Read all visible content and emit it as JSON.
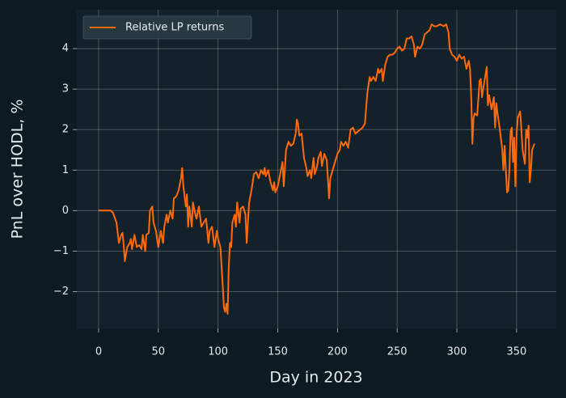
{
  "chart_data": {
    "type": "line",
    "xlabel": "Day in 2023",
    "ylabel": "PnL over HODL, %",
    "legend": "upper left",
    "grid": true,
    "xlim": [
      -18.25,
      383.25
    ],
    "ylim": [
      -2.91,
      4.96
    ],
    "xticks": [
      0,
      50,
      100,
      150,
      200,
      250,
      300,
      350
    ],
    "yticks": [
      {
        "value": -2,
        "label": "−2"
      },
      {
        "value": -1,
        "label": "−1"
      },
      0,
      1,
      2,
      3,
      4
    ],
    "x": [
      0,
      5,
      10,
      12,
      15,
      17,
      19,
      20,
      21,
      22,
      24,
      26,
      27,
      28,
      30,
      32,
      34,
      36,
      37,
      39,
      40,
      42,
      43,
      45,
      46,
      48,
      50,
      52,
      54,
      55,
      57,
      58,
      60,
      62,
      63,
      65,
      67,
      69,
      70,
      71,
      73,
      74,
      75,
      76,
      78,
      79,
      81,
      82,
      84,
      86,
      88,
      90,
      92,
      93,
      95,
      97,
      99,
      100,
      102,
      104,
      105,
      106,
      107,
      108,
      109,
      110,
      111,
      112,
      114,
      115,
      116,
      118,
      119,
      121,
      123,
      124,
      126,
      128,
      130,
      132,
      134,
      136,
      138,
      139,
      140,
      142,
      144,
      146,
      147,
      148,
      150,
      152,
      154,
      155,
      157,
      159,
      161,
      163,
      165,
      166,
      167,
      168,
      170,
      172,
      174,
      175,
      177,
      178,
      180,
      181,
      183,
      184,
      186,
      187,
      189,
      191,
      193,
      194,
      196,
      198,
      200,
      202,
      203,
      205,
      207,
      209,
      211,
      213,
      215,
      217,
      219,
      221,
      223,
      225,
      227,
      228,
      230,
      232,
      234,
      235,
      237,
      238,
      240,
      242,
      244,
      246,
      248,
      250,
      252,
      254,
      256,
      258,
      260,
      262,
      264,
      265,
      267,
      269,
      271,
      273,
      275,
      277,
      279,
      281,
      283,
      286,
      289,
      291,
      293,
      294,
      296,
      298,
      300,
      302,
      304,
      306,
      308,
      310,
      311,
      312,
      313,
      314,
      315,
      317,
      319,
      320,
      321,
      322,
      325,
      326,
      327,
      329,
      331,
      332,
      333,
      334,
      336,
      338,
      339,
      340,
      341,
      342,
      343,
      344,
      345,
      346,
      347,
      348,
      349,
      350,
      351,
      353,
      354,
      355,
      357,
      358,
      359,
      360,
      361,
      362,
      363,
      365
    ],
    "series": [
      {
        "name": "Relative LP returns",
        "color": "#ff6a0d",
        "values": [
          0,
          0,
          0,
          -0.05,
          -0.3,
          -0.8,
          -0.6,
          -0.55,
          -0.85,
          -1.25,
          -0.9,
          -0.8,
          -0.7,
          -0.95,
          -0.6,
          -0.9,
          -0.85,
          -0.95,
          -0.6,
          -1.0,
          -0.6,
          -0.55,
          0.0,
          0.1,
          -0.3,
          -0.5,
          -0.9,
          -0.5,
          -0.8,
          -0.4,
          -0.1,
          -0.3,
          0.0,
          -0.2,
          0.3,
          0.35,
          0.5,
          0.8,
          1.05,
          0.6,
          0.1,
          0.4,
          -0.4,
          0.1,
          -0.4,
          0.2,
          -0.1,
          -0.2,
          0.1,
          -0.4,
          -0.3,
          -0.2,
          -0.8,
          -0.5,
          -0.4,
          -0.9,
          -0.5,
          -0.7,
          -0.9,
          -1.9,
          -2.4,
          -2.5,
          -2.3,
          -2.55,
          -1.4,
          -0.8,
          -0.9,
          -0.3,
          -0.1,
          -0.4,
          0.2,
          -0.3,
          0.05,
          0.1,
          -0.1,
          -0.8,
          0.2,
          0.5,
          0.9,
          0.95,
          0.8,
          1.0,
          0.9,
          1.05,
          0.85,
          1.0,
          0.7,
          0.5,
          0.7,
          0.45,
          0.6,
          0.9,
          1.2,
          0.6,
          1.5,
          1.7,
          1.6,
          1.65,
          1.9,
          2.25,
          2.15,
          1.85,
          1.9,
          1.3,
          1.05,
          0.85,
          1.0,
          0.8,
          1.3,
          0.9,
          1.1,
          1.3,
          1.45,
          1.1,
          1.4,
          1.25,
          0.3,
          0.8,
          1.0,
          1.2,
          1.4,
          1.5,
          1.7,
          1.6,
          1.7,
          1.55,
          2.0,
          2.05,
          1.9,
          1.95,
          2.0,
          2.05,
          2.15,
          2.9,
          3.3,
          3.2,
          3.3,
          3.2,
          3.5,
          3.4,
          3.5,
          3.2,
          3.6,
          3.8,
          3.85,
          3.85,
          3.9,
          4.0,
          4.05,
          3.95,
          4.0,
          4.25,
          4.25,
          4.3,
          4.1,
          3.8,
          4.05,
          4.0,
          4.1,
          4.35,
          4.4,
          4.45,
          4.6,
          4.55,
          4.55,
          4.6,
          4.55,
          4.6,
          4.4,
          4.0,
          3.85,
          3.8,
          3.7,
          3.85,
          3.75,
          3.8,
          3.5,
          3.7,
          3.5,
          2.8,
          1.65,
          2.3,
          2.4,
          2.35,
          3.2,
          3.25,
          2.8,
          3.0,
          3.55,
          2.6,
          2.85,
          2.5,
          2.8,
          2.05,
          2.65,
          2.4,
          2.0,
          1.5,
          1.0,
          1.6,
          1.0,
          0.45,
          0.5,
          1.0,
          1.95,
          2.05,
          1.2,
          1.8,
          0.6,
          1.9,
          2.3,
          2.45,
          2.0,
          1.5,
          1.15,
          2.0,
          1.8,
          2.1,
          0.7,
          1.0,
          1.5,
          1.65
        ]
      }
    ]
  }
}
